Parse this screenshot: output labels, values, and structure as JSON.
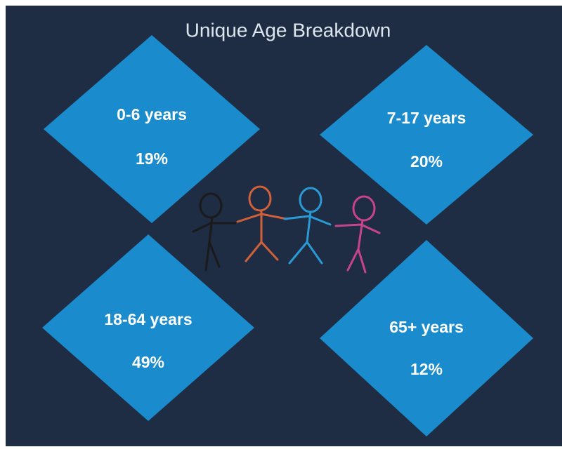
{
  "title": "Unique Age Breakdown",
  "groups": [
    {
      "label": "0-6 years",
      "share": "19%"
    },
    {
      "label": "7-17 years",
      "share": "20%"
    },
    {
      "label": "18-64 years",
      "share": "49%"
    },
    {
      "label": "65+ years",
      "share": "12%"
    }
  ]
}
